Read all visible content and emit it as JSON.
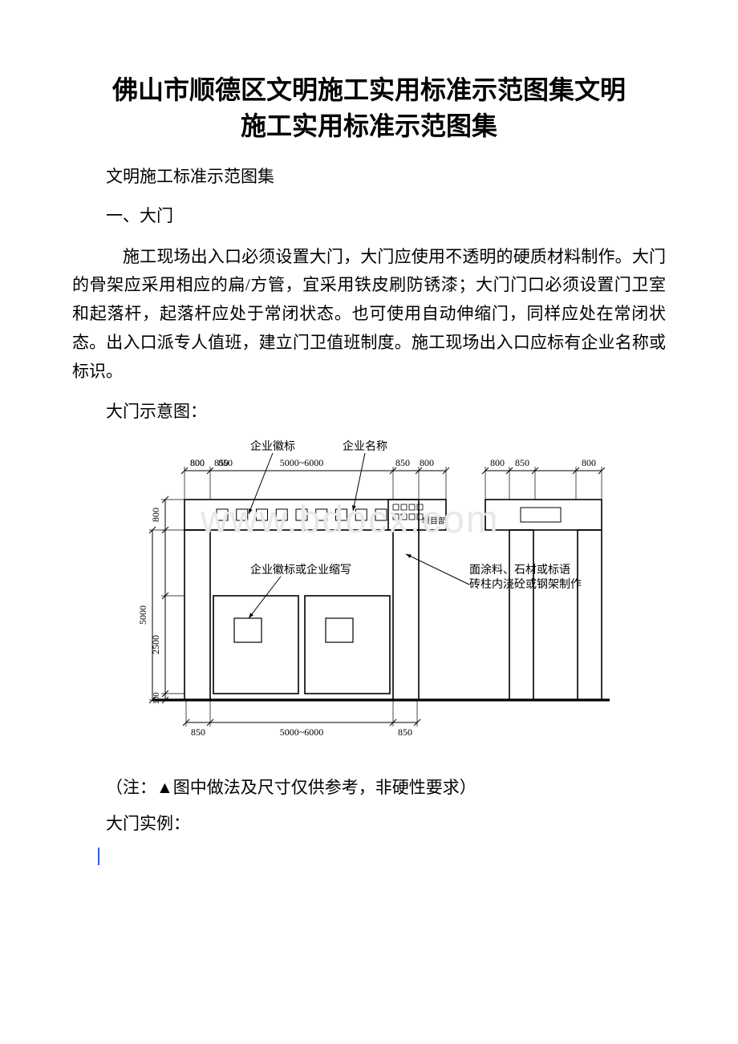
{
  "doc": {
    "title_line1": "佛山市顺德区文明施工实用标准示范图集文明",
    "title_line2": "施工实用标准示范图集",
    "subtitle": "文明施工标准示范图集",
    "section1_heading": "一、大门",
    "paragraph1": "施工现场出入口必须设置大门，大门应使用不透明的硬质材料制作。大门的骨架应采用相应的扁/方管，宜采用铁皮刷防锈漆；大门门口必须设置门卫室和起落杆，起落杆应处于常闭状态。也可使用自动伸缩门，同样应处在常闭状态。出入口派专人值班，建立门卫值班制度。施工现场出入口应标有企业名称或标识。",
    "caption_diagram": "大门示意图：",
    "note": "（注：▲图中做法及尺寸仅供参考，非硬性要求）",
    "caption_example": "大门实例：",
    "watermark": "www.bdocx.com"
  },
  "diagram": {
    "type": "engineering-elevation",
    "stroke": "#000000",
    "stroke_thin": 1,
    "stroke_med": 1.6,
    "stroke_bold": 3.2,
    "text_color": "#000000",
    "font_size_label": 14,
    "font_size_small": 11,
    "labels": {
      "top_badge": "企业徽标",
      "top_name": "企业名称",
      "mid_badge": "企业徽标或企业缩写",
      "right_note1": "面涂料、石材或标语",
      "right_note2": "砖柱内浇砼或钢架制作",
      "project_dept": "项目部"
    },
    "dims_top": [
      "800",
      "850",
      "5000~6000",
      "850",
      "800",
      "800",
      "850",
      "800"
    ],
    "dims_left": [
      "800",
      "5000",
      "2500",
      "100"
    ],
    "dims_bottom": [
      "850",
      "5000~6000",
      "850"
    ]
  }
}
